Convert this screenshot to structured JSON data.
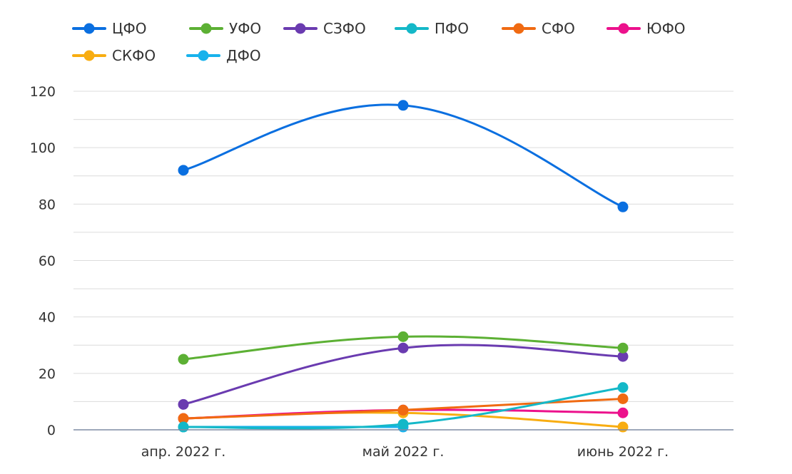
{
  "chart_data": {
    "type": "line",
    "categories": [
      "апр. 2022 г.",
      "май 2022 г.",
      "июнь 2022 г."
    ],
    "ylim": [
      0,
      120
    ],
    "yticks": [
      0,
      20,
      40,
      60,
      80,
      100,
      120
    ],
    "grid": true,
    "legend_position": "top",
    "series": [
      {
        "name": "ЦФО",
        "color": "#0a6fe0",
        "values": [
          92,
          115,
          79
        ]
      },
      {
        "name": "УФО",
        "color": "#5cb034",
        "values": [
          25,
          33,
          29
        ]
      },
      {
        "name": "СЗФО",
        "color": "#6a3bb0",
        "values": [
          9,
          29,
          26
        ]
      },
      {
        "name": "ПФО",
        "color": "#14b8c8",
        "values": [
          1,
          2,
          15
        ]
      },
      {
        "name": "СФО",
        "color": "#f06a12",
        "values": [
          4,
          7,
          11
        ]
      },
      {
        "name": "ЮФО",
        "color": "#ec118c",
        "values": [
          4,
          7,
          6
        ]
      },
      {
        "name": "СКФО",
        "color": "#f8ad11",
        "values": [
          4,
          6,
          1
        ]
      },
      {
        "name": "ДФО",
        "color": "#18b2ec",
        "values": [
          1,
          1,
          null
        ]
      }
    ]
  }
}
